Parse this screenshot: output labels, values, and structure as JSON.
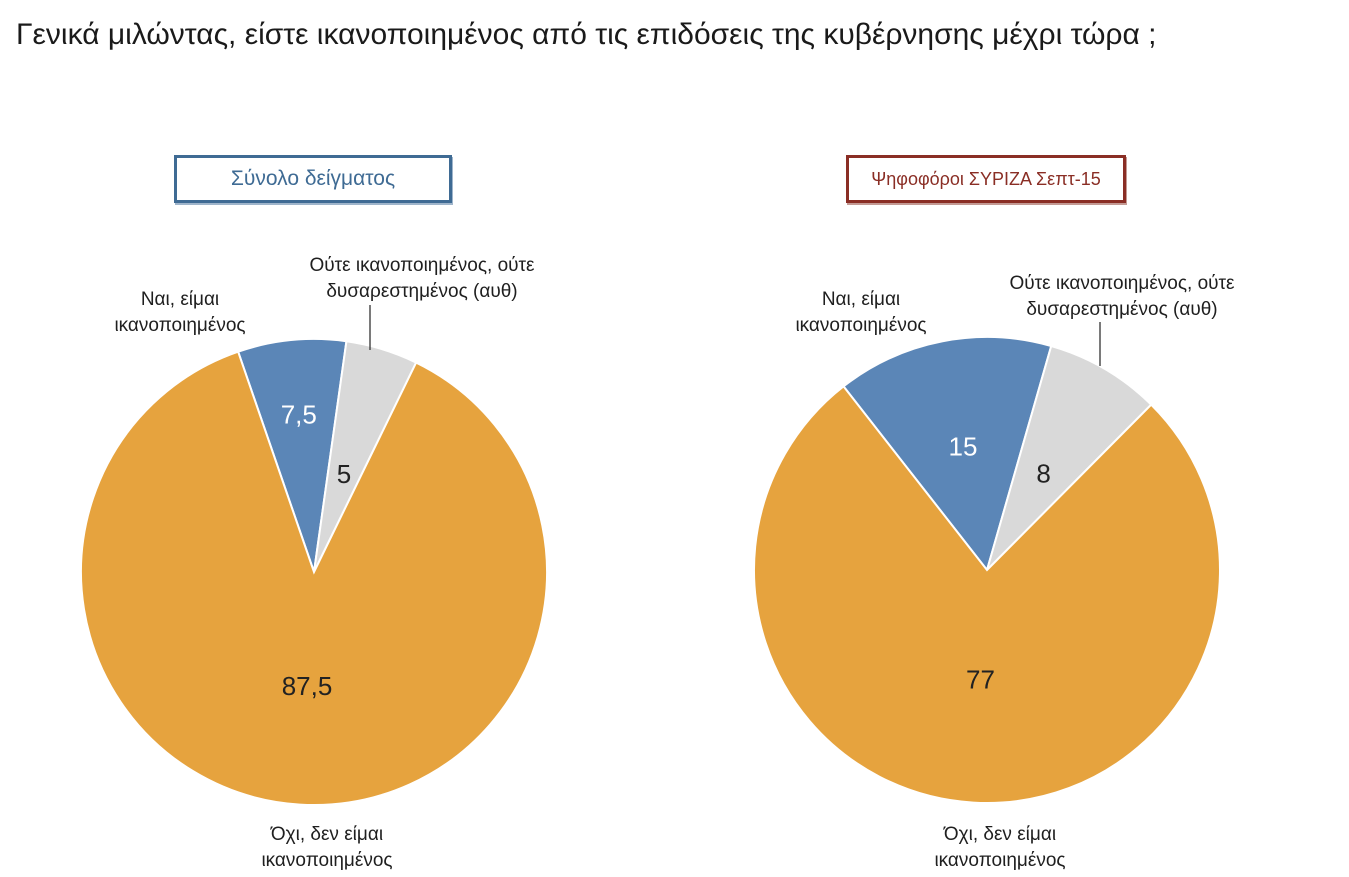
{
  "question": "Γενικά μιλώντας, είστε ικανοποιημένος από τις επιδόσεις της κυβέρνησης μέχρι τώρα ;",
  "colors": {
    "yes": "#5b86b7",
    "neutral": "#d9d9d9",
    "no": "#e6a33e",
    "blue_title": "#3f6b94",
    "red_title": "#8a2e25"
  },
  "chart_data": [
    {
      "type": "pie",
      "title": "Σύνολο δείγματος",
      "categories": [
        "Ναι, είμαι ικανοποιημένος",
        "Ούτε ικανοποιημένος, ούτε δυσαρεστημένος (αυθ)",
        "Όχι, δεν είμαι ικανοποιημένος"
      ],
      "values": [
        7.5,
        5,
        87.5
      ],
      "value_labels": [
        "7,5",
        "5",
        "87,5"
      ],
      "label_lines": {
        "yes": [
          "Ναι, είμαι",
          "ικανοποιημένος"
        ],
        "neutral": [
          "Ούτε ικανοποιημένος, ούτε",
          "δυσαρεστημένος (αυθ)"
        ],
        "no": [
          "Όχι, δεν είμαι",
          "ικανοποιημένος"
        ]
      }
    },
    {
      "type": "pie",
      "title": "Ψηφοφόροι ΣΥΡΙΖΑ Σεπτ-15",
      "categories": [
        "Ναι, είμαι ικανοποιημένος",
        "Ούτε ικανοποιημένος, ούτε δυσαρεστημένος (αυθ)",
        "Όχι, δεν είμαι ικανοποιημένος"
      ],
      "values": [
        15,
        8,
        77
      ],
      "value_labels": [
        "15",
        "8",
        "77"
      ],
      "label_lines": {
        "yes": [
          "Ναι, είμαι",
          "ικανοποιημένος"
        ],
        "neutral": [
          "Ούτε ικανοποιημένος, ούτε",
          "δυσαρεστημένος (αυθ)"
        ],
        "no": [
          "Όχι, δεν είμαι",
          "ικανοποιημένος"
        ]
      }
    }
  ]
}
